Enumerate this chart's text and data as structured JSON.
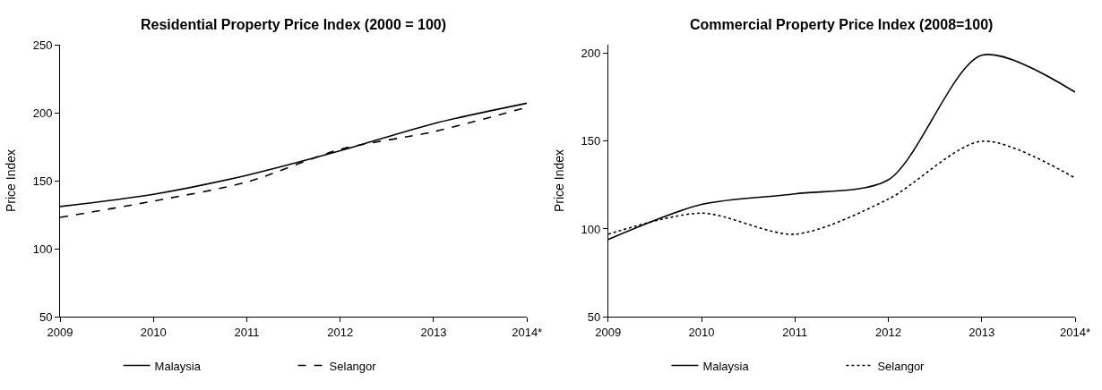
{
  "chart_data": [
    {
      "type": "line",
      "title": "Residential Property Price Index (2000 = 100)",
      "ylabel": "Price Index",
      "categories": [
        "2009",
        "2010",
        "2011",
        "2012",
        "2013",
        "2014*"
      ],
      "ylim": [
        50,
        250
      ],
      "yticks": [
        50,
        100,
        150,
        200,
        250
      ],
      "legend": "bottom",
      "marker": "none",
      "series": [
        {
          "name": "Malaysia",
          "color": "#000000",
          "line_style": "solid",
          "values": [
            131,
            140,
            154,
            172,
            192,
            207
          ]
        },
        {
          "name": "Selangor",
          "color": "#000000",
          "line_style": "dashed",
          "values": [
            123,
            135,
            149,
            173,
            186,
            204
          ]
        }
      ]
    },
    {
      "type": "line",
      "title": "Commercial Property Price Index (2008=100)",
      "ylabel": "Price Index",
      "categories": [
        "2009",
        "2010",
        "2011",
        "2012",
        "2013",
        "2014*"
      ],
      "ylim": [
        50,
        205
      ],
      "yticks": [
        50,
        100,
        150,
        200
      ],
      "legend": "bottom",
      "marker": "none",
      "series": [
        {
          "name": "Malaysia",
          "color": "#000000",
          "line_style": "solid",
          "values": [
            94,
            114,
            120,
            128,
            199,
            178
          ]
        },
        {
          "name": "Selangor",
          "color": "#000000",
          "line_style": "dotted",
          "values": [
            97,
            109,
            97,
            117,
            150,
            129
          ]
        }
      ]
    }
  ]
}
